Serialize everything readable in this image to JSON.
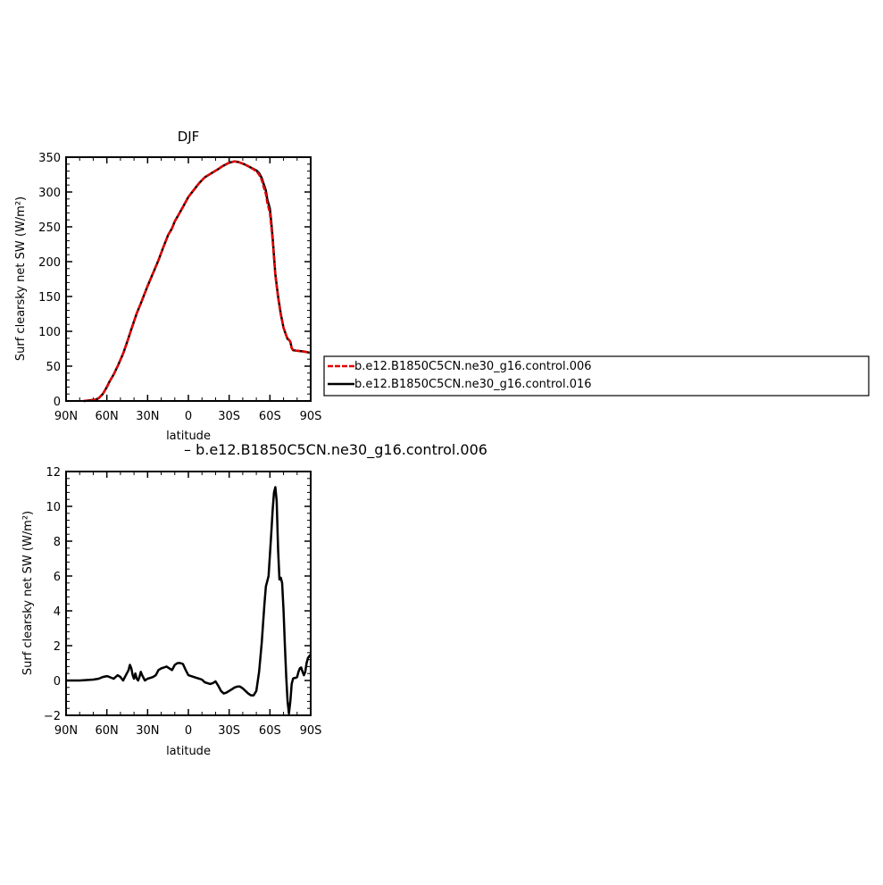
{
  "colors": {
    "control_006": "#e00000",
    "control_016": "#000000",
    "difference": "#000000"
  },
  "chart_data": [
    {
      "type": "line",
      "title": "DJF",
      "xlabel": "latitude",
      "ylabel": "Surf clearsky net SW (W/m²)",
      "xlim": [
        -90,
        90
      ],
      "ylim": [
        0,
        350
      ],
      "x_ticks": [
        -90,
        -60,
        -30,
        0,
        30,
        60,
        90
      ],
      "x_tick_labels": [
        "90N",
        "60N",
        "30N",
        "0",
        "30S",
        "60S",
        "90S"
      ],
      "y_ticks": [
        0,
        50,
        100,
        150,
        200,
        250,
        300,
        350
      ],
      "y_tick_labels": [
        "0",
        "50",
        "100",
        "150",
        "200",
        "250",
        "300",
        "350"
      ],
      "legend_position": "right",
      "series": [
        {
          "name": "b.e12.B1850C5CN.ne30_g16.control.006",
          "style": "dashed",
          "color": "#e00000",
          "x": [
            -77,
            -72,
            -68,
            -66,
            -63,
            -60,
            -58,
            -55,
            -52,
            -48,
            -45,
            -42,
            -38,
            -35,
            -30,
            -25,
            -22,
            -19,
            -15,
            -12,
            -10,
            -7,
            -3,
            0,
            4,
            8,
            12,
            17,
            22,
            25,
            30,
            34,
            37,
            41,
            45,
            50,
            52,
            54,
            55,
            57,
            58,
            60,
            61,
            62,
            63,
            64,
            66,
            68,
            70,
            72,
            73,
            74,
            75,
            76,
            77,
            80,
            85,
            90
          ],
          "y": [
            0,
            1,
            2,
            4,
            10,
            20,
            28,
            38,
            50,
            68,
            85,
            103,
            126,
            140,
            165,
            188,
            202,
            218,
            238,
            248,
            258,
            268,
            282,
            293,
            303,
            313,
            321,
            327,
            333,
            337,
            342,
            344,
            343,
            340,
            336,
            330,
            325,
            317,
            310,
            297,
            285,
            270,
            250,
            230,
            205,
            180,
            148,
            124,
            105,
            94,
            89,
            88,
            85,
            76,
            73,
            72,
            71,
            69
          ]
        },
        {
          "name": "b.e12.B1850C5CN.ne30_g16.control.016",
          "style": "solid",
          "color": "#000000",
          "x": [
            -77,
            -72,
            -68,
            -66,
            -63,
            -60,
            -58,
            -55,
            -52,
            -48,
            -45,
            -42,
            -38,
            -35,
            -30,
            -25,
            -22,
            -19,
            -15,
            -12,
            -10,
            -7,
            -3,
            0,
            4,
            8,
            12,
            17,
            22,
            25,
            30,
            34,
            37,
            41,
            45,
            50,
            52,
            54,
            55,
            57,
            58,
            60,
            61,
            62,
            63,
            64,
            66,
            68,
            70,
            72,
            73,
            74,
            75,
            76,
            77,
            80,
            85,
            90
          ],
          "y": [
            0,
            1,
            2,
            4,
            10,
            20,
            28,
            38,
            50,
            68,
            85,
            103,
            126,
            140,
            165,
            188,
            202,
            218,
            238,
            248,
            258,
            268,
            282,
            293,
            303,
            313,
            321,
            327,
            333,
            337,
            342,
            344,
            343,
            340,
            336,
            331,
            327,
            320,
            314,
            302,
            290,
            276,
            256,
            234,
            208,
            182,
            150,
            125,
            105,
            94,
            89,
            88,
            85,
            76,
            73,
            72,
            71,
            69
          ]
        }
      ]
    },
    {
      "type": "line",
      "title": "– b.e12.B1850C5CN.ne30_g16.control.006",
      "xlabel": "latitude",
      "ylabel": "Surf clearsky net SW (W/m²)",
      "xlim": [
        -90,
        90
      ],
      "ylim": [
        -2,
        12
      ],
      "x_ticks": [
        -90,
        -60,
        -30,
        0,
        30,
        60,
        90
      ],
      "x_tick_labels": [
        "90N",
        "60N",
        "30N",
        "0",
        "30S",
        "60S",
        "90S"
      ],
      "y_ticks": [
        -2,
        0,
        2,
        4,
        6,
        8,
        10,
        12
      ],
      "y_tick_labels": [
        "−2",
        "0",
        "2",
        "4",
        "6",
        "8",
        "10",
        "12"
      ],
      "series": [
        {
          "style": "solid",
          "color": "#000000",
          "x": [
            -90,
            -80,
            -70,
            -66,
            -63,
            -60,
            -58,
            -55,
            -52,
            -50,
            -48,
            -46,
            -44,
            -43,
            -42,
            -41,
            -40,
            -39,
            -38,
            -37,
            -36,
            -35,
            -34,
            -32,
            -30,
            -28,
            -26,
            -24,
            -22,
            -20,
            -18,
            -16,
            -14,
            -12,
            -10,
            -8,
            -6,
            -4,
            -2,
            0,
            2,
            4,
            6,
            8,
            10,
            12,
            14,
            16,
            18,
            20,
            22,
            24,
            26,
            28,
            30,
            32,
            34,
            36,
            38,
            40,
            42,
            44,
            46,
            48,
            50,
            52,
            54,
            55,
            56,
            57,
            58,
            59,
            60,
            61,
            62,
            63,
            64,
            65,
            66,
            67,
            68,
            69,
            70,
            71,
            72,
            73,
            74,
            75,
            76,
            77,
            78,
            79,
            80,
            81,
            82,
            83,
            84,
            85,
            86,
            87,
            88,
            89,
            90
          ],
          "y": [
            0,
            0,
            0.05,
            0.1,
            0.2,
            0.25,
            0.2,
            0.1,
            0.3,
            0.2,
            0.0,
            0.3,
            0.6,
            0.9,
            0.7,
            0.3,
            0.1,
            0.4,
            0.1,
            0.0,
            0.2,
            0.5,
            0.3,
            0.0,
            0.1,
            0.15,
            0.2,
            0.3,
            0.6,
            0.7,
            0.75,
            0.8,
            0.7,
            0.6,
            0.9,
            1.0,
            1.0,
            0.95,
            0.6,
            0.3,
            0.25,
            0.2,
            0.15,
            0.1,
            0.05,
            -0.1,
            -0.15,
            -0.2,
            -0.15,
            -0.05,
            -0.3,
            -0.6,
            -0.75,
            -0.7,
            -0.6,
            -0.5,
            -0.4,
            -0.35,
            -0.35,
            -0.45,
            -0.6,
            -0.75,
            -0.85,
            -0.85,
            -0.6,
            0.5,
            2.2,
            3.3,
            4.4,
            5.4,
            5.7,
            6.0,
            7.2,
            8.5,
            9.8,
            10.8,
            11.1,
            10.3,
            7.5,
            5.8,
            5.9,
            5.6,
            4.0,
            2.0,
            0.2,
            -1.2,
            -1.9,
            -1.2,
            -0.2,
            0.1,
            0.15,
            0.15,
            0.2,
            0.5,
            0.7,
            0.75,
            0.5,
            0.3,
            0.5,
            1.0,
            1.3,
            1.4,
            1.5
          ]
        }
      ]
    }
  ]
}
